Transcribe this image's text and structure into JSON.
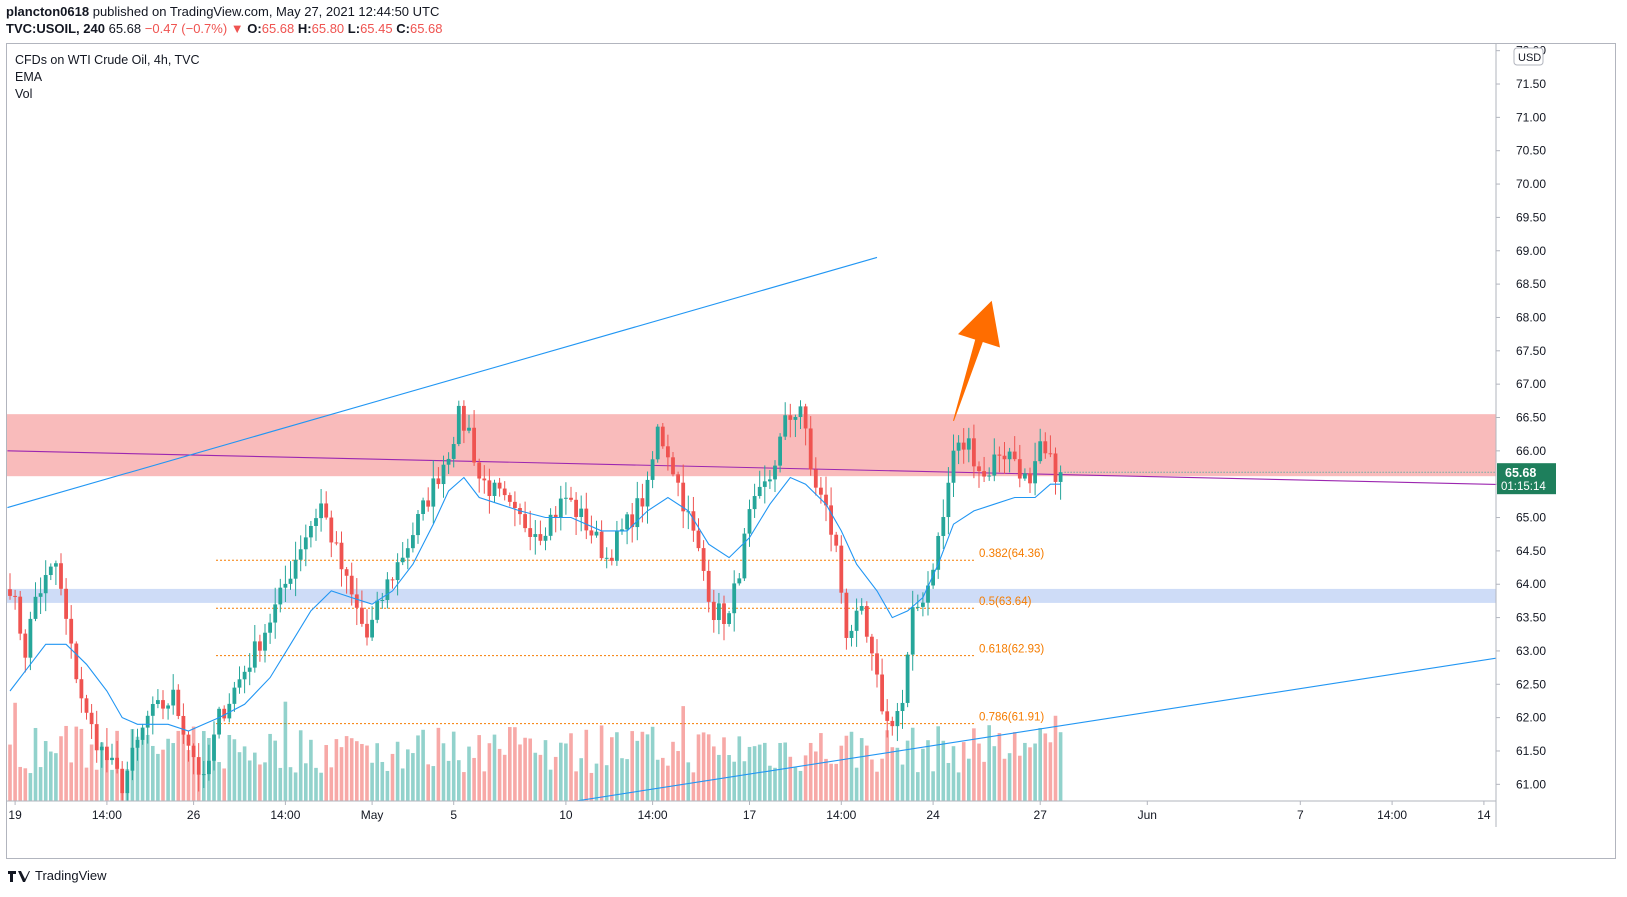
{
  "header": {
    "publisher": "plancton0618",
    "published_text": "published on TradingView.com, May 27, 2021 12:44:50 UTC",
    "symbol": "TVC:USOIL, 240",
    "last": "65.68",
    "change": "−0.47 (−0.7%)",
    "o_label": "O:",
    "o_value": "65.68",
    "h_label": "H:",
    "h_value": "65.80",
    "l_label": "L:",
    "l_value": "65.45",
    "c_label": "C:",
    "c_value": "65.68"
  },
  "legend": [
    "CFDs on WTI Crude Oil, 4h, TVC",
    "EMA",
    "Vol"
  ],
  "footer": {
    "brand": "TradingView"
  },
  "colors": {
    "up": "#26a69a",
    "down": "#ef5350",
    "ema": "#2196f3",
    "channel": "#2196f3",
    "zone_res": "#f8b4b4",
    "zone_sup": "#c5d6f6",
    "fib": "#f57c00",
    "arrow": "#ff6d00",
    "trend": "#9c27b0"
  },
  "chart_data": {
    "type": "candlestick",
    "y_axis": {
      "min": 60.75,
      "max": 72.1,
      "currency": "USD",
      "ticks": [
        "61.00",
        "61.50",
        "62.00",
        "62.50",
        "63.00",
        "63.50",
        "64.00",
        "64.50",
        "65.00",
        "65.50",
        "66.00",
        "66.50",
        "67.00",
        "67.50",
        "68.00",
        "68.50",
        "69.00",
        "69.50",
        "70.00",
        "70.50",
        "71.00",
        "71.50",
        "72.00"
      ]
    },
    "x_axis": {
      "ticks": [
        {
          "label": "19",
          "i": 1
        },
        {
          "label": "14:00",
          "i": 19
        },
        {
          "label": "26",
          "i": 36
        },
        {
          "label": "14:00",
          "i": 54
        },
        {
          "label": "May",
          "i": 71
        },
        {
          "label": "5",
          "i": 87
        },
        {
          "label": "10",
          "i": 109
        },
        {
          "label": "14:00",
          "i": 126
        },
        {
          "label": "17",
          "i": 145
        },
        {
          "label": "14:00",
          "i": 163
        },
        {
          "label": "24",
          "i": 181
        },
        {
          "label": "27",
          "i": 202
        },
        {
          "label": "Jun",
          "i": 223
        },
        {
          "label": "7",
          "i": 253
        },
        {
          "label": "14:00",
          "i": 271
        },
        {
          "label": "14",
          "i": 289
        }
      ]
    },
    "last_price": {
      "value": 65.68,
      "label": "65.68",
      "countdown": "01:15:14"
    },
    "fib_levels": [
      {
        "ratio": "0.382",
        "value": 64.36,
        "label": "0.382(64.36)"
      },
      {
        "ratio": "0.5",
        "value": 63.64,
        "label": "0.5(63.64)"
      },
      {
        "ratio": "0.618",
        "value": 62.93,
        "label": "0.618(62.93)"
      },
      {
        "ratio": "0.786",
        "value": 61.91,
        "label": "0.786(61.91)"
      }
    ],
    "zones": [
      {
        "from": 65.62,
        "to": 66.55,
        "kind": "resistance"
      },
      {
        "from": 63.72,
        "to": 63.93,
        "kind": "support"
      }
    ],
    "anchors": [
      [
        0.0,
        64.0
      ],
      [
        3.0,
        63.0
      ],
      [
        5.0,
        63.8
      ],
      [
        9.0,
        64.3
      ],
      [
        12.0,
        63.0
      ],
      [
        15.0,
        62.0
      ],
      [
        18.0,
        61.5
      ],
      [
        22.0,
        61.0
      ],
      [
        27.0,
        62.0
      ],
      [
        32.0,
        62.3
      ],
      [
        38.0,
        61.0
      ],
      [
        41.0,
        62.0
      ],
      [
        48.0,
        63.0
      ],
      [
        53.0,
        63.8
      ],
      [
        57.0,
        64.6
      ],
      [
        61.0,
        65.2
      ],
      [
        66.0,
        64.0
      ],
      [
        70.0,
        63.2
      ],
      [
        74.0,
        64.0
      ],
      [
        78.0,
        64.6
      ],
      [
        82.0,
        65.3
      ],
      [
        86.0,
        66.0
      ],
      [
        88.0,
        66.5
      ],
      [
        90.0,
        66.3
      ],
      [
        92.0,
        65.6
      ],
      [
        96.0,
        65.3
      ],
      [
        99.0,
        65.0
      ],
      [
        104.0,
        64.8
      ],
      [
        109.0,
        65.3
      ],
      [
        113.0,
        64.9
      ],
      [
        117.0,
        64.4
      ],
      [
        121.0,
        64.9
      ],
      [
        125.0,
        65.4
      ],
      [
        127.0,
        66.3
      ],
      [
        129.0,
        66.0
      ],
      [
        133.0,
        65.0
      ],
      [
        136.0,
        64.2
      ],
      [
        138.0,
        63.6
      ],
      [
        141.0,
        63.5
      ],
      [
        145.0,
        65.0
      ],
      [
        149.0,
        65.6
      ],
      [
        152.0,
        66.4
      ],
      [
        155.0,
        66.7
      ],
      [
        157.0,
        65.7
      ],
      [
        160.0,
        65.1
      ],
      [
        162.0,
        64.5
      ],
      [
        164.0,
        63.3
      ],
      [
        167.0,
        63.5
      ],
      [
        170.0,
        62.5
      ],
      [
        172.0,
        61.9
      ],
      [
        175.0,
        62.2
      ],
      [
        177.0,
        63.5
      ],
      [
        180.0,
        64.0
      ],
      [
        183.0,
        65.0
      ],
      [
        185.0,
        66.0
      ],
      [
        188.0,
        66.1
      ],
      [
        191.0,
        65.6
      ],
      [
        194.0,
        66.0
      ],
      [
        197.0,
        65.9
      ],
      [
        200.0,
        65.4
      ],
      [
        202.0,
        66.0
      ],
      [
        205.0,
        65.7
      ],
      [
        206.0,
        65.68
      ]
    ],
    "ema": [
      [
        0.0,
        62.4
      ],
      [
        4.0,
        62.8
      ],
      [
        7.0,
        63.1
      ],
      [
        11.0,
        63.1
      ],
      [
        15.0,
        62.8
      ],
      [
        19.0,
        62.4
      ],
      [
        22.0,
        62.0
      ],
      [
        25.0,
        61.9
      ],
      [
        28.0,
        61.9
      ],
      [
        31.0,
        61.9
      ],
      [
        35.0,
        61.8
      ],
      [
        38.0,
        61.9
      ],
      [
        41.0,
        62.0
      ],
      [
        46.0,
        62.2
      ],
      [
        51.0,
        62.6
      ],
      [
        55.0,
        63.1
      ],
      [
        59.0,
        63.6
      ],
      [
        63.0,
        63.9
      ],
      [
        67.0,
        63.8
      ],
      [
        71.0,
        63.7
      ],
      [
        75.0,
        63.9
      ],
      [
        79.0,
        64.3
      ],
      [
        83.0,
        64.9
      ],
      [
        86.0,
        65.4
      ],
      [
        89.0,
        65.6
      ],
      [
        92.0,
        65.3
      ],
      [
        96.0,
        65.2
      ],
      [
        100.0,
        65.1
      ],
      [
        105.0,
        65.0
      ],
      [
        110.0,
        65.0
      ],
      [
        116.0,
        64.8
      ],
      [
        121.0,
        64.8
      ],
      [
        125.0,
        65.1
      ],
      [
        129.0,
        65.3
      ],
      [
        133.0,
        65.1
      ],
      [
        137.0,
        64.6
      ],
      [
        141.0,
        64.4
      ],
      [
        145.0,
        64.7
      ],
      [
        149.0,
        65.2
      ],
      [
        153.0,
        65.6
      ],
      [
        156.0,
        65.5
      ],
      [
        160.0,
        65.2
      ],
      [
        163.0,
        64.8
      ],
      [
        166.0,
        64.3
      ],
      [
        170.0,
        63.9
      ],
      [
        173.0,
        63.5
      ],
      [
        176.0,
        63.6
      ],
      [
        179.0,
        63.8
      ],
      [
        182.0,
        64.3
      ],
      [
        185.0,
        64.9
      ],
      [
        189.0,
        65.1
      ],
      [
        193.0,
        65.2
      ],
      [
        197.0,
        65.3
      ],
      [
        201.0,
        65.3
      ],
      [
        204.0,
        65.5
      ],
      [
        206.0,
        65.5
      ]
    ],
    "volume": {
      "min": 30,
      "max": 160
    },
    "channel_upper": [
      [
        -0.5,
        65.15
      ],
      [
        170.0,
        68.9
      ]
    ],
    "channel_lower": [
      [
        111.0,
        60.75
      ],
      [
        330.0,
        63.35
      ]
    ],
    "trendline": [
      [
        -0.5,
        66.0
      ],
      [
        330.0,
        65.43
      ]
    ],
    "arrow": {
      "from": [
        185.0,
        66.45
      ],
      "to": [
        192.5,
        68.25
      ]
    }
  }
}
